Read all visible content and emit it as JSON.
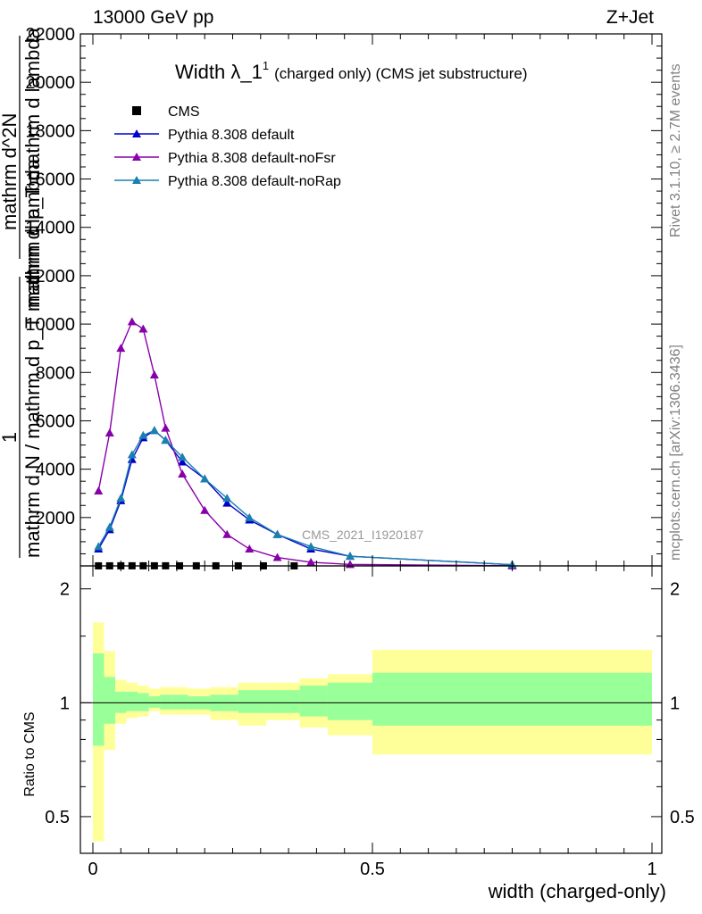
{
  "header": {
    "left": "13000 GeV pp",
    "right": "Z+Jet"
  },
  "side_labels": {
    "rivet": "Rivet 3.1.10, ≥ 2.7M events",
    "mcplots": "mcplots.cern.ch [arXiv:1306.3436]"
  },
  "watermark": "CMS_2021_I1920187",
  "title": {
    "main": "Width λ_1",
    "sup": "1",
    "sub": "(charged only) (CMS jet substructure)"
  },
  "y_label_main": {
    "frac_num": "1",
    "frac_den": "mathrm d N / mathrm d p_T mathrm d lambda",
    "tail": "mathrm d^2N",
    "frac2_den": "mathrm d p_T mathrm d lambda",
    "frac2_num": "mathrm d^2N"
  },
  "y_label_ratio": "Ratio to CMS",
  "x_label": "width (charged-only)",
  "colors": {
    "cms": "#000000",
    "default": "#0000cc",
    "noFsr": "#8800aa",
    "noRap": "#1a80b0",
    "band_outer": "#ffff99",
    "band_inner": "#99ff99"
  },
  "chart_data": [
    {
      "type": "line",
      "panel": "main",
      "title": "Width λ_1^1 (charged only) (CMS jet substructure)",
      "xlim": [
        0,
        1
      ],
      "ylim": [
        0,
        22000
      ],
      "y_ticks": [
        2000,
        4000,
        6000,
        8000,
        10000,
        12000,
        14000,
        16000,
        18000,
        20000,
        22000
      ],
      "y_tick_labels": [
        "2000",
        "4000",
        "6000",
        "8000",
        "10000",
        "12000",
        "14000",
        "16000",
        "18000",
        "20000",
        "22000"
      ],
      "legend_position": "top-left",
      "series": [
        {
          "name": "CMS",
          "marker": "square",
          "x": [
            0.01,
            0.03,
            0.05,
            0.07,
            0.09,
            0.11,
            0.13,
            0.155,
            0.185,
            0.22,
            0.26,
            0.305,
            0.36
          ],
          "y": [
            2,
            3,
            4,
            4,
            4,
            4,
            4,
            3,
            3,
            3,
            2,
            2,
            1
          ]
        },
        {
          "name": "Pythia 8.308 default",
          "marker": "triangle",
          "x": [
            0.01,
            0.03,
            0.05,
            0.07,
            0.09,
            0.11,
            0.13,
            0.16,
            0.2,
            0.24,
            0.28,
            0.33,
            0.39,
            0.46,
            0.75
          ],
          "y": [
            700,
            1500,
            2700,
            4400,
            5300,
            5600,
            5200,
            4300,
            3600,
            2600,
            1900,
            1300,
            700,
            400,
            50
          ]
        },
        {
          "name": "Pythia 8.308 default-noFsr",
          "marker": "triangle",
          "x": [
            0.01,
            0.03,
            0.05,
            0.07,
            0.09,
            0.11,
            0.13,
            0.16,
            0.2,
            0.24,
            0.28,
            0.33,
            0.39,
            0.46,
            0.75
          ],
          "y": [
            3100,
            5500,
            9000,
            10100,
            9800,
            7900,
            5700,
            3800,
            2300,
            1300,
            700,
            350,
            150,
            60,
            5
          ]
        },
        {
          "name": "Pythia 8.308 default-noRap",
          "marker": "triangle",
          "x": [
            0.01,
            0.03,
            0.05,
            0.07,
            0.09,
            0.11,
            0.13,
            0.16,
            0.2,
            0.24,
            0.28,
            0.33,
            0.39,
            0.46,
            0.75
          ],
          "y": [
            800,
            1600,
            2800,
            4600,
            5400,
            5600,
            5200,
            4500,
            3600,
            2800,
            2000,
            1300,
            800,
            400,
            50
          ]
        }
      ]
    },
    {
      "type": "area",
      "panel": "ratio",
      "ylabel": "Ratio to CMS",
      "xlabel": "width (charged-only)",
      "xlim": [
        0,
        1
      ],
      "ylim": [
        0.4,
        2.3
      ],
      "y_scale": "log",
      "y_ticks": [
        0.5,
        1,
        2
      ],
      "y_tick_labels": [
        "0.5",
        "1",
        "2"
      ],
      "x_ticks": [
        0,
        0.5,
        1
      ],
      "x_tick_labels": [
        "0",
        "0.5",
        "1"
      ],
      "bins": [
        0,
        0.02,
        0.04,
        0.06,
        0.08,
        0.1,
        0.12,
        0.14,
        0.17,
        0.21,
        0.26,
        0.31,
        0.37,
        0.42,
        0.5,
        1.0
      ],
      "band_outer": [
        [
          0.43,
          1.63
        ],
        [
          0.75,
          1.37
        ],
        [
          0.88,
          1.15
        ],
        [
          0.91,
          1.13
        ],
        [
          0.92,
          1.11
        ],
        [
          0.95,
          1.09
        ],
        [
          0.93,
          1.1
        ],
        [
          0.93,
          1.1
        ],
        [
          0.93,
          1.09
        ],
        [
          0.9,
          1.1
        ],
        [
          0.87,
          1.13
        ],
        [
          0.9,
          1.13
        ],
        [
          0.86,
          1.16
        ],
        [
          0.82,
          1.19
        ],
        [
          0.73,
          1.38
        ]
      ],
      "band_inner": [
        [
          0.77,
          1.35
        ],
        [
          0.88,
          1.17
        ],
        [
          0.94,
          1.07
        ],
        [
          0.95,
          1.07
        ],
        [
          0.95,
          1.06
        ],
        [
          0.97,
          1.04
        ],
        [
          0.96,
          1.05
        ],
        [
          0.96,
          1.05
        ],
        [
          0.96,
          1.04
        ],
        [
          0.95,
          1.05
        ],
        [
          0.94,
          1.08
        ],
        [
          0.94,
          1.08
        ],
        [
          0.92,
          1.11
        ],
        [
          0.9,
          1.13
        ],
        [
          0.87,
          1.2
        ]
      ],
      "reference_line": 1
    }
  ]
}
